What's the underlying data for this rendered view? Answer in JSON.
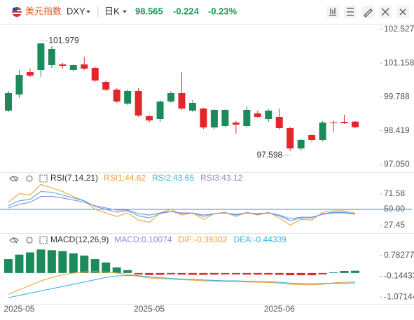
{
  "header": {
    "name": "美元指数",
    "symbol": "DXY",
    "period": "日K",
    "price": "98.565",
    "change": "-0.224",
    "change_pct": "-0.23%"
  },
  "chart_data": [
    {
      "type": "candlestick",
      "categories": [
        null,
        "2025-05",
        null,
        null,
        null,
        null,
        null,
        null,
        null,
        null,
        null,
        null,
        null,
        "2025-05",
        null,
        null,
        null,
        null,
        null,
        null,
        null,
        null,
        null,
        null,
        null,
        "2025-06",
        null,
        null,
        null,
        null,
        null,
        null,
        null
      ],
      "open": [
        99.235,
        99.888,
        100.796,
        100.881,
        101.08,
        101.108,
        100.881,
        101.108,
        100.966,
        100.399,
        100.086,
        99.519,
        100.03,
        99.008,
        98.894,
        99.604,
        99.944,
        99.235,
        99.32,
        98.554,
        98.611,
        98.752,
        98.611,
        99.122,
        98.894,
        98.98,
        98.525,
        97.703,
        98.242,
        98.043,
        98.752,
        98.78,
        98.789
      ],
      "high": [
        100.03,
        100.881,
        100.938,
        101.979,
        101.846,
        101.165,
        101.108,
        101.42,
        101.023,
        100.455,
        100.143,
        100.086,
        100.143,
        99.065,
        99.661,
        100.03,
        100.796,
        99.661,
        99.349,
        99.292,
        99.292,
        98.809,
        99.405,
        99.235,
        99.292,
        99.32,
        98.582,
        98.1,
        98.27,
        98.809,
        98.838,
        99.065,
        98.809
      ],
      "low": [
        99.178,
        99.746,
        100.597,
        100.597,
        100.966,
        100.938,
        100.825,
        100.881,
        100.399,
        100.03,
        99.547,
        99.462,
        98.98,
        98.752,
        98.781,
        99.547,
        99.263,
        99.178,
        98.497,
        98.497,
        98.554,
        98.298,
        98.554,
        98.951,
        98.781,
        98.469,
        97.598,
        97.617,
        97.986,
        97.986,
        98.355,
        98.696,
        98.525
      ],
      "close": [
        99.944,
        100.682,
        100.654,
        101.959,
        101.732,
        101.05,
        101.08,
        100.938,
        100.455,
        100.086,
        99.604,
        100.03,
        99.036,
        98.838,
        99.604,
        99.944,
        99.32,
        99.547,
        98.554,
        99.263,
        99.263,
        98.667,
        99.263,
        98.98,
        99.235,
        98.525,
        97.703,
        98.043,
        98.043,
        98.752,
        98.724,
        98.724,
        98.565
      ],
      "up_color": "#1d8a5c",
      "down_color": "#e3262b",
      "ylim": [
        96.766,
        102.725
      ],
      "yticks": [
        102.527,
        101.158,
        99.788,
        98.419,
        {
          "value": 97.05,
          "label": "97.050"
        }
      ]
    },
    {
      "type": "line",
      "title": "RSI(7,14,21)",
      "series": [
        {
          "name": "RSI1:",
          "color": "#f0a23c",
          "values": [
            60,
            72,
            70,
            85,
            80,
            75,
            68,
            62,
            50,
            45,
            40,
            45,
            35,
            32,
            45,
            50,
            42,
            45,
            36,
            44,
            46,
            40,
            46,
            42,
            46,
            38,
            28,
            36,
            35,
            46,
            48,
            48,
            44.62
          ]
        },
        {
          "name": "RSI2:",
          "color": "#3fb4d8",
          "values": [
            55,
            62,
            64,
            75,
            74,
            70,
            66,
            62,
            54,
            50,
            46,
            48,
            41,
            38,
            44,
            47,
            44,
            45,
            40,
            44,
            45,
            42,
            45,
            43,
            45,
            41,
            34,
            38,
            38,
            44,
            46,
            46,
            43.65
          ]
        },
        {
          "name": "RSI3:",
          "color": "#9a86d8",
          "values": [
            52,
            57,
            60,
            68,
            68,
            66,
            63,
            60,
            55,
            52,
            49,
            49,
            44,
            42,
            45,
            47,
            45,
            45,
            42,
            44,
            45,
            43,
            45,
            44,
            45,
            42,
            37,
            39,
            39,
            43,
            45,
            45,
            43.12
          ]
        }
      ],
      "reference_line": {
        "value": 50,
        "color": "#3d8fe0"
      },
      "ylim": [
        17.64,
        86.29
      ],
      "yticks": [
        71.58,
        {
          "value": 50,
          "label": "50.00"
        },
        27.45
      ]
    },
    {
      "type": "macd",
      "title": "MACD(12,26,9)",
      "histogram": {
        "name": "MACD:",
        "legend_color": "#9a86d8",
        "up_color": "#1d8a5c",
        "down_color": "#e3262b",
        "values": [
          0.62,
          0.82,
          0.92,
          1.05,
          1.02,
          0.98,
          0.88,
          0.78,
          0.62,
          0.47,
          0.25,
          0.13,
          -0.06,
          -0.09,
          -0.08,
          -0.06,
          -0.07,
          -0.08,
          -0.08,
          -0.07,
          -0.06,
          -0.06,
          -0.07,
          -0.07,
          -0.07,
          -0.08,
          -0.1,
          -0.1,
          -0.1,
          -0.06,
          0.03,
          0.09,
          0.10074
        ]
      },
      "series": [
        {
          "name": "DIF:",
          "color": "#f0a23c",
          "values": [
            -0.95,
            -0.75,
            -0.55,
            -0.35,
            -0.2,
            -0.08,
            0,
            0.05,
            0.06,
            0.04,
            0,
            -0.05,
            -0.15,
            -0.22,
            -0.25,
            -0.27,
            -0.3,
            -0.32,
            -0.35,
            -0.36,
            -0.38,
            -0.38,
            -0.4,
            -0.41,
            -0.42,
            -0.45,
            -0.5,
            -0.52,
            -0.53,
            -0.5,
            -0.44,
            -0.41,
            -0.39302
          ]
        },
        {
          "name": "DEA:",
          "color": "#3fb4d8",
          "values": [
            -1.1,
            -1,
            -0.9,
            -0.8,
            -0.7,
            -0.6,
            -0.5,
            -0.4,
            -0.3,
            -0.2,
            -0.13,
            -0.11,
            -0.12,
            -0.17,
            -0.21,
            -0.24,
            -0.27,
            -0.28,
            -0.31,
            -0.33,
            -0.35,
            -0.35,
            -0.37,
            -0.38,
            -0.39,
            -0.41,
            -0.45,
            -0.47,
            -0.48,
            -0.47,
            -0.455,
            -0.455,
            -0.44339
          ]
        }
      ],
      "ylim": [
        -1.38,
        1.185
      ],
      "yticks": [
        0.78277,
        -0.14433,
        -1.07144
      ]
    }
  ]
}
